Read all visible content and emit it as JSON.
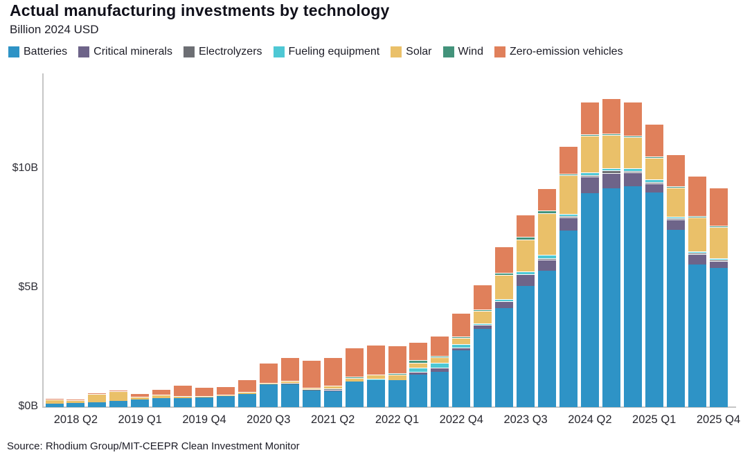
{
  "title": "Actual manufacturing investments by technology",
  "subtitle": "Billion 2024 USD",
  "source": "Source: Rhodium Group/MIT-CEEPR Clean Investment Monitor",
  "y_axis": {
    "labels": [
      "$10B",
      "$5B",
      "$0B"
    ],
    "values": [
      10,
      5,
      0
    ]
  },
  "colors": {
    "axis_line": "#c6c6c6",
    "text": "#1c1c26",
    "batteries": "#2E93C6",
    "critical_minerals": "#6E6489",
    "electrolyzers": "#6D6F74",
    "fueling_equipment": "#4EC8D4",
    "solar": "#EAC069",
    "wind": "#43937B",
    "zero_emission_vehicles": "#E0805B"
  },
  "chart_data": {
    "type": "bar",
    "stacked": true,
    "title": "Actual manufacturing investments by technology",
    "subtitle": "Billion 2024 USD",
    "xlabel": "",
    "ylabel": "Billion 2024 USD",
    "ylim": [
      0,
      14
    ],
    "grid": false,
    "legend_position": "top",
    "categories": [
      "2018 Q1",
      "2018 Q2",
      "2018 Q3",
      "2018 Q4",
      "2019 Q1",
      "2019 Q2",
      "2019 Q3",
      "2019 Q4",
      "2020 Q1",
      "2020 Q2",
      "2020 Q3",
      "2020 Q4",
      "2021 Q1",
      "2021 Q2",
      "2021 Q3",
      "2021 Q4",
      "2022 Q1",
      "2022 Q2",
      "2022 Q3",
      "2022 Q4",
      "2023 Q1",
      "2023 Q2",
      "2023 Q3",
      "2023 Q4",
      "2024 Q1",
      "2024 Q2",
      "2024 Q3",
      "2024 Q4",
      "2025 Q1",
      "2025 Q2",
      "2025 Q3",
      "2025 Q4"
    ],
    "x_tick_labels": [
      "2018 Q2",
      "2019 Q1",
      "2019 Q4",
      "2020 Q3",
      "2021 Q2",
      "2022 Q1",
      "2022 Q4",
      "2023 Q3",
      "2024 Q2",
      "2025 Q1",
      "2025 Q4"
    ],
    "x_tick_indices": [
      1,
      4,
      7,
      10,
      13,
      16,
      19,
      22,
      25,
      28,
      31
    ],
    "series": [
      {
        "name": "Batteries",
        "color": "#2E93C6",
        "values": [
          0.16,
          0.17,
          0.19,
          0.25,
          0.32,
          0.37,
          0.39,
          0.41,
          0.47,
          0.55,
          0.96,
          0.97,
          0.7,
          0.68,
          1.07,
          1.12,
          1.13,
          1.35,
          1.49,
          2.39,
          3.28,
          4.15,
          5.08,
          5.72,
          7.38,
          8.95,
          9.15,
          9.24,
          9.0,
          7.43,
          5.98,
          5.82
        ]
      },
      {
        "name": "Critical minerals",
        "color": "#6E6489",
        "values": [
          0,
          0,
          0,
          0,
          0,
          0,
          0,
          0,
          0,
          0,
          0,
          0,
          0,
          0.04,
          0,
          0,
          0,
          0.14,
          0.15,
          0.11,
          0.17,
          0.3,
          0.49,
          0.45,
          0.55,
          0.7,
          0.65,
          0.58,
          0.35,
          0.42,
          0.42,
          0.31
        ]
      },
      {
        "name": "Electrolyzers",
        "color": "#6D6F74",
        "values": [
          0,
          0,
          0,
          0,
          0,
          0,
          0,
          0,
          0,
          0,
          0,
          0.05,
          0.06,
          0.05,
          0,
          0,
          0,
          0,
          0,
          0,
          0,
          0,
          0,
          0.04,
          0.07,
          0.05,
          0.1,
          0.04,
          0.03,
          0.02,
          0.02,
          0.02
        ]
      },
      {
        "name": "Fueling equipment",
        "color": "#4EC8D4",
        "values": [
          0,
          0,
          0,
          0,
          0,
          0,
          0,
          0,
          0,
          0,
          0,
          0,
          0,
          0,
          0,
          0.05,
          0,
          0.17,
          0.22,
          0.13,
          0.04,
          0.08,
          0.1,
          0.14,
          0.08,
          0.13,
          0.1,
          0.13,
          0.13,
          0.07,
          0.05,
          0.04
        ]
      },
      {
        "name": "Solar",
        "color": "#EAC069",
        "values": [
          0.17,
          0.12,
          0.36,
          0.41,
          0.12,
          0.14,
          0.08,
          0.06,
          0.06,
          0.1,
          0.05,
          0.06,
          0.05,
          0.1,
          0.14,
          0.18,
          0.23,
          0.2,
          0.22,
          0.27,
          0.52,
          1.0,
          1.33,
          1.76,
          1.62,
          1.54,
          1.4,
          1.3,
          0.9,
          1.22,
          1.42,
          1.28
        ]
      },
      {
        "name": "Wind",
        "color": "#43937B",
        "values": [
          0,
          0,
          0,
          0,
          0,
          0,
          0,
          0,
          0,
          0,
          0,
          0,
          0,
          0,
          0.02,
          0,
          0.07,
          0.1,
          0.06,
          0.07,
          0.05,
          0.08,
          0.12,
          0.1,
          0.03,
          0.02,
          0.02,
          0.02,
          0.02,
          0.02,
          0.02,
          0.02
        ]
      },
      {
        "name": "Zero-emission vehicles",
        "color": "#E0805B",
        "values": [
          0.02,
          0.02,
          0.02,
          0.06,
          0.14,
          0.25,
          0.45,
          0.38,
          0.33,
          0.5,
          0.83,
          1.0,
          1.16,
          1.2,
          1.22,
          1.25,
          1.14,
          0.76,
          0.85,
          0.98,
          1.04,
          1.1,
          0.93,
          0.93,
          1.18,
          1.35,
          1.48,
          1.42,
          1.35,
          1.32,
          1.7,
          1.6
        ]
      }
    ]
  }
}
